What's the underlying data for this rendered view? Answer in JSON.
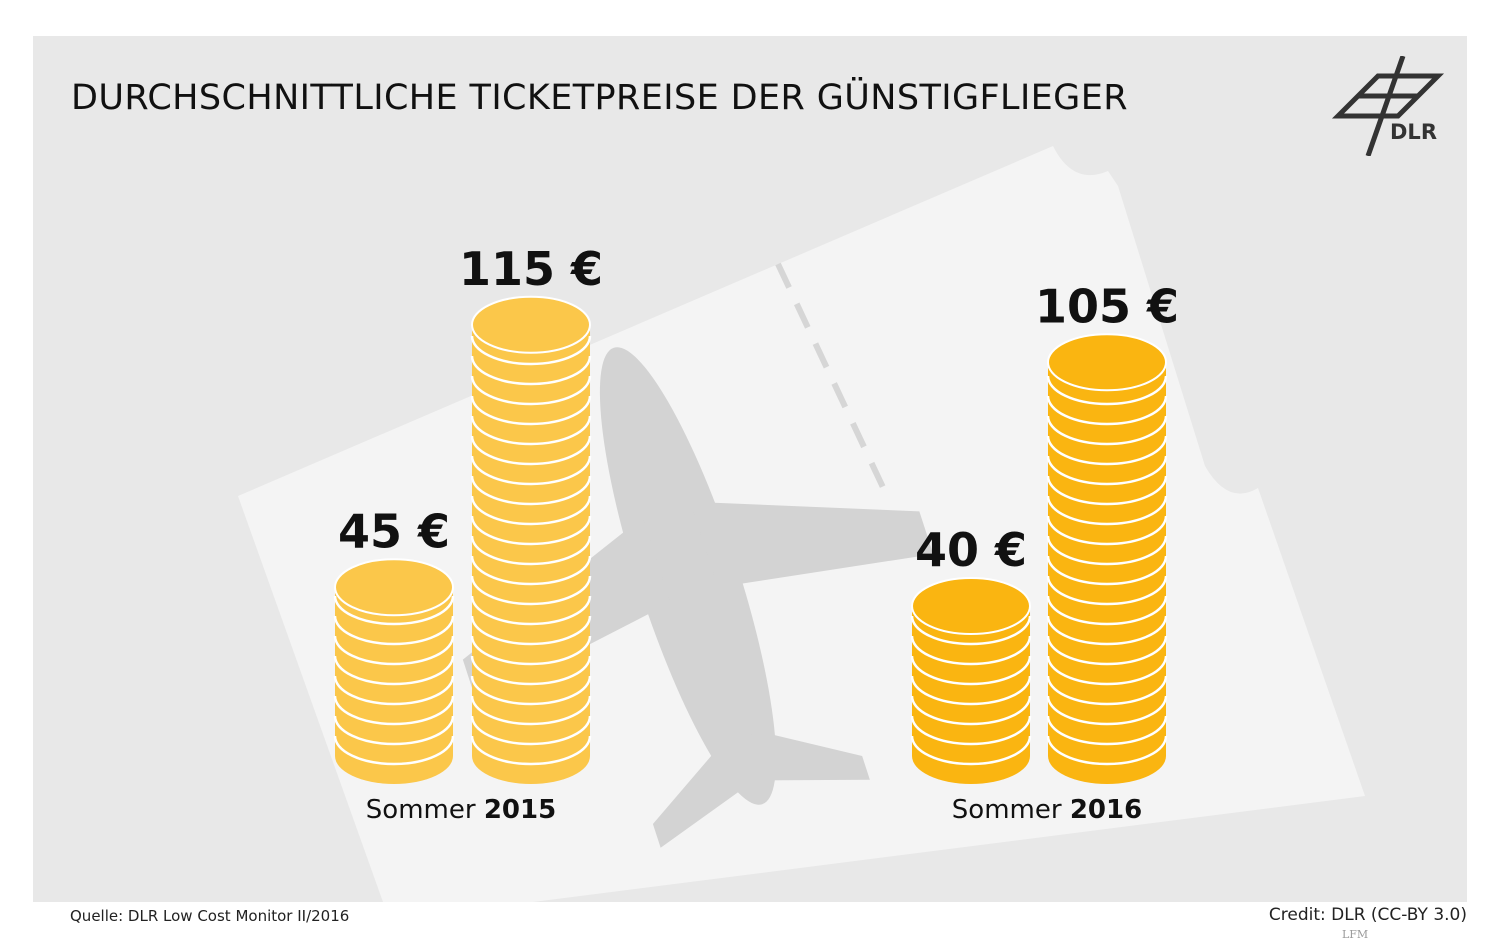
{
  "title": "DURCHSCHNITTLICHE TICKETPREISE DER GÜNSTIGFLIEGER",
  "logo_text": "DLR",
  "source": "Quelle: DLR Low Cost Monitor II/2016",
  "credit": "Credit: DLR (CC-BY 3.0)",
  "watermark": "LFM",
  "colors": {
    "background": "#e8e8e8",
    "ticket": "#f4f4f4",
    "plane": "#d3d3d3",
    "coin_2015": "#fbc74a",
    "coin_2016": "#fab511",
    "coin_line": "#ffffff"
  },
  "chart_data": {
    "type": "bar",
    "categories": [
      "Sommer 2015",
      "Sommer 2016"
    ],
    "group_labels": [
      {
        "prefix": "Sommer ",
        "year": "2015"
      },
      {
        "prefix": "Sommer ",
        "year": "2016"
      }
    ],
    "unit": "€",
    "values": [
      [
        45,
        115
      ],
      [
        40,
        105
      ]
    ],
    "value_labels": [
      [
        "45 €",
        "115 €"
      ],
      [
        "40 €",
        "105 €"
      ]
    ]
  }
}
